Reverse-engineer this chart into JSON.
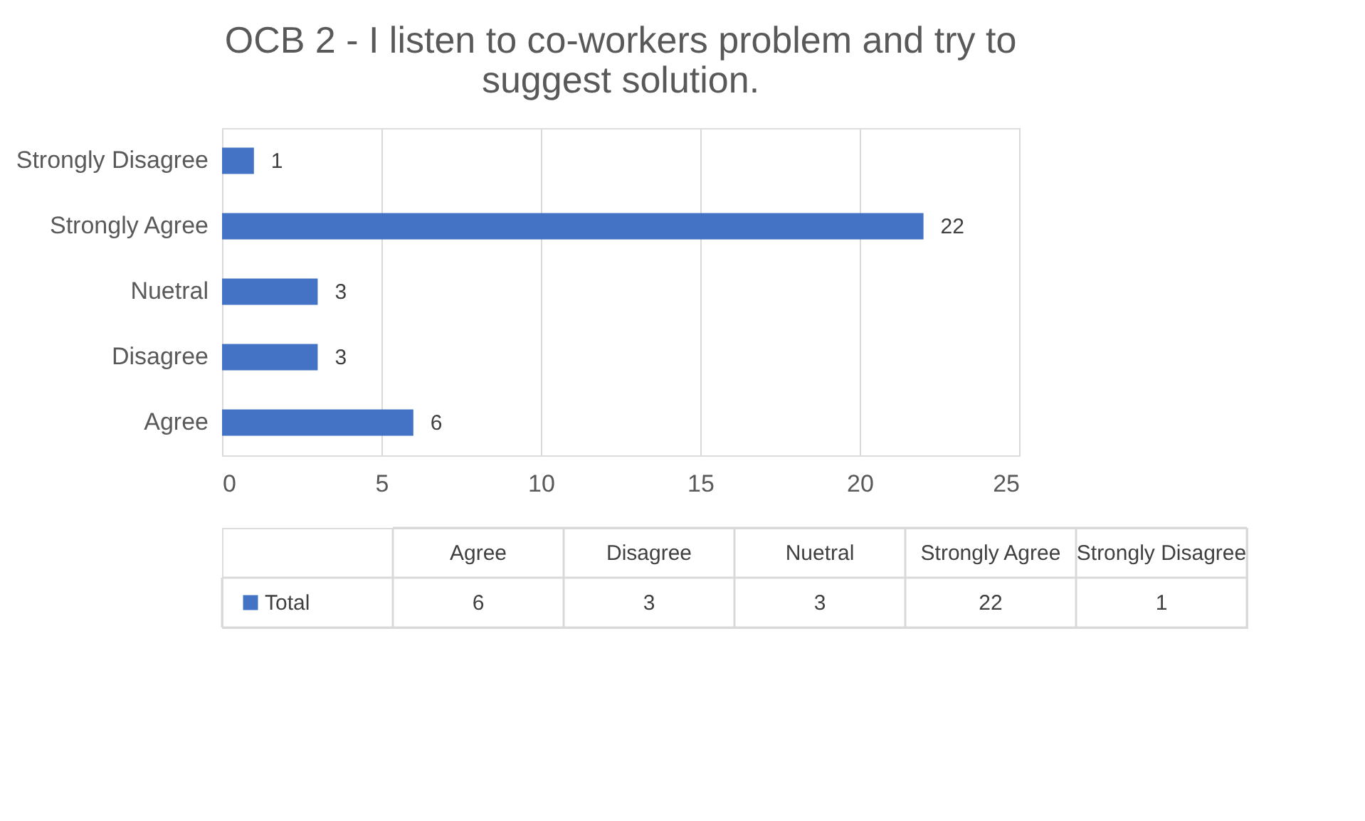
{
  "chart_data": [
    {
      "type": "bar",
      "orientation": "horizontal",
      "title": "OCB 2 - I listen to co-workers problem and try to suggest solution.",
      "categories": [
        "Strongly Disagree",
        "Strongly Agree",
        "Nuetral",
        "Disagree",
        "Agree"
      ],
      "series": [
        {
          "color": "#4472c4",
          "values": [
            1,
            22,
            3,
            3,
            6
          ]
        }
      ],
      "xlim": [
        0,
        25
      ],
      "xticks": [
        0,
        5,
        10,
        15,
        20,
        25
      ],
      "grid": "x",
      "data_labels": true
    },
    {
      "type": "other",
      "categories": [
        "Agree",
        "Disagree",
        "Nuetral",
        "Strongly Agree",
        "Strongly Disagree"
      ],
      "series": [
        {
          "name": "Total",
          "color": "#4472c4",
          "values": [
            6,
            3,
            3,
            22,
            1
          ]
        }
      ],
      "data_labels": true,
      "legend": "left"
    }
  ]
}
